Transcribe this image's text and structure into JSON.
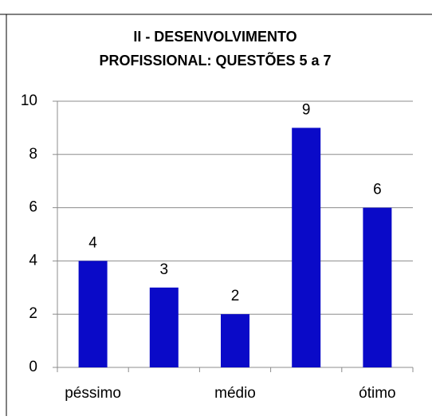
{
  "chart_data": {
    "type": "bar",
    "title": [
      "II - DESENVOLVIMENTO",
      "PROFISSIONAL: QUESTÕES  5 a 7"
    ],
    "categories": [
      "péssimo",
      null,
      "médio",
      null,
      "ótimo"
    ],
    "values": [
      4,
      3,
      2,
      9,
      6
    ],
    "color": "#0a0ac8",
    "ylim": [
      0,
      10
    ],
    "yticks": [
      0,
      2,
      4,
      6,
      8,
      10
    ],
    "grid": true
  }
}
